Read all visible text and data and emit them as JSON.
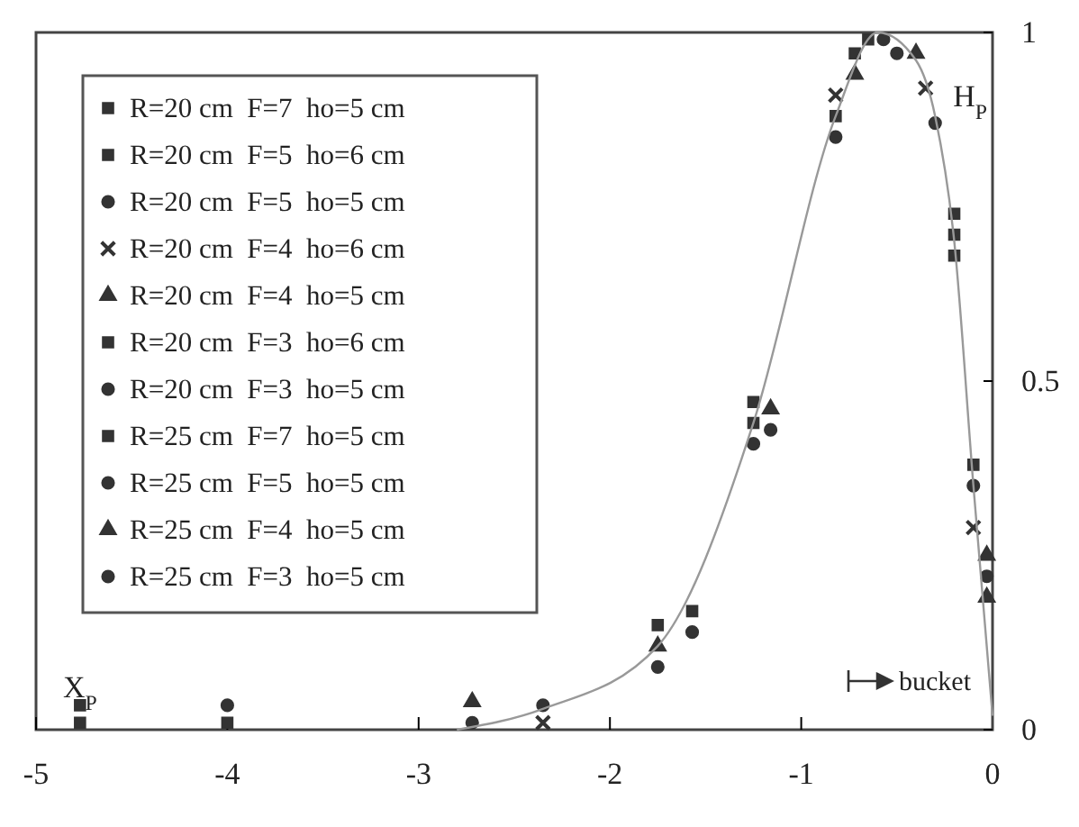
{
  "chart_data": {
    "type": "scatter",
    "xlim": [
      -5,
      0
    ],
    "xticks": [
      -5,
      -4,
      -3,
      -2,
      -1,
      0
    ],
    "ylim": [
      0,
      1
    ],
    "yticks": [
      0,
      0.5,
      1
    ],
    "grid": false,
    "legend": "top left",
    "annotations": [
      {
        "text": "X$_{P}$",
        "x": -4.77,
        "y": 0.01
      },
      {
        "text": "H$_{P}$",
        "x": -0.3,
        "y": 0.93
      },
      "bucket"
    ],
    "series": [
      {
        "name": "R=20 cm  F=7  ho=5 cm",
        "color": "#333333",
        "marker": "square",
        "x": [
          -4.77,
          -1.75,
          -1.25,
          -0.65,
          -0.1
        ],
        "values": [
          0.01,
          0.15,
          0.47,
          0.99,
          0.38
        ]
      },
      {
        "name": "R=20 cm  F=5  ho=6 cm",
        "color": "#333333",
        "marker": "square",
        "x": [
          -4,
          -1.25,
          -0.2
        ],
        "values": [
          0.01,
          0.44,
          0.74
        ]
      },
      {
        "name": "R=20 cm  F=5  ho=5 cm",
        "color": "#333333",
        "marker": "circle",
        "x": [
          -2.72,
          -1.25,
          -0.57,
          -0.03
        ],
        "values": [
          0.01,
          0.41,
          0.99,
          0.22
        ]
      },
      {
        "name": "R=20 cm  F=4  ho=6 cm",
        "color": "#333333",
        "marker": "cross",
        "x": [
          -2.35,
          -0.82,
          -0.35,
          -0.1
        ],
        "values": [
          0.01,
          0.91,
          0.92,
          0.29
        ]
      },
      {
        "name": "R=20 cm  F=4  ho=5 cm",
        "color": "#333333",
        "marker": "triangle",
        "x": [
          -1.75,
          -0.72,
          -0.03
        ],
        "values": [
          0.12,
          0.94,
          0.19
        ]
      },
      {
        "name": "R=20 cm  F=3  ho=6 cm",
        "color": "#333333",
        "marker": "square",
        "x": [
          -0.82,
          -0.2
        ],
        "values": [
          0.88,
          0.71
        ]
      },
      {
        "name": "R=20 cm  F=3  ho=5 cm",
        "color": "#333333",
        "marker": "circle",
        "x": [
          -1.75,
          -0.82,
          -0.1
        ],
        "values": [
          0.09,
          0.85,
          0.35
        ]
      },
      {
        "name": "R=25 cm  F=7  ho=5 cm",
        "color": "#333333",
        "marker": "square",
        "x": [
          -4.77,
          -1.57,
          -0.72,
          -0.2
        ],
        "values": [
          0.035,
          0.17,
          0.97,
          0.68
        ]
      },
      {
        "name": "R=25 cm  F=5  ho=5 cm",
        "color": "#333333",
        "marker": "circle",
        "x": [
          -4,
          -1.57,
          -0.5
        ],
        "values": [
          0.035,
          0.14,
          0.97
        ]
      },
      {
        "name": "R=25 cm  F=4  ho=5 cm",
        "color": "#333333",
        "marker": "triangle",
        "x": [
          -2.72,
          -1.16,
          -0.4,
          -0.03
        ],
        "values": [
          0.04,
          0.46,
          0.97,
          0.25
        ]
      },
      {
        "name": "R=25 cm  F=3  ho=5 cm",
        "color": "#333333",
        "marker": "circle",
        "x": [
          -2.35,
          -1.16,
          -0.3
        ],
        "values": [
          0.035,
          0.43,
          0.87
        ]
      },
      {
        "type": "line",
        "color": "#999999",
        "marker": "none",
        "x": [
          -2.8,
          -2.35,
          -1.75,
          -1.25,
          -0.82,
          -0.6,
          -0.4,
          -0.3,
          -0.2,
          -0.1,
          0
        ],
        "values": [
          0,
          0.03,
          0.12,
          0.44,
          0.88,
          1.0,
          0.96,
          0.88,
          0.7,
          0.35,
          0.02
        ]
      }
    ]
  }
}
